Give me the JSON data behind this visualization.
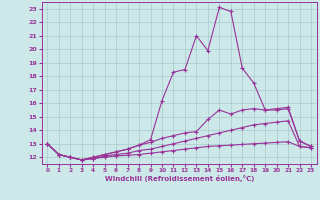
{
  "xlabel": "Windchill (Refroidissement éolien,°C)",
  "xlim": [
    -0.5,
    23.5
  ],
  "ylim": [
    11.5,
    23.5
  ],
  "yticks": [
    12,
    13,
    14,
    15,
    16,
    17,
    18,
    19,
    20,
    21,
    22,
    23
  ],
  "xticks": [
    0,
    1,
    2,
    3,
    4,
    5,
    6,
    7,
    8,
    9,
    10,
    11,
    12,
    13,
    14,
    15,
    16,
    17,
    18,
    19,
    20,
    21,
    22,
    23
  ],
  "bg_color": "#cce8e8",
  "grid_color": "#aacccc",
  "line_color": "#993399",
  "line1_x": [
    0,
    1,
    2,
    3,
    4,
    5,
    6,
    7,
    8,
    9,
    10,
    11,
    12,
    13,
    14,
    15,
    16,
    17,
    18,
    19,
    20,
    21,
    22,
    23
  ],
  "line1_y": [
    13.0,
    12.2,
    12.0,
    11.8,
    11.9,
    12.0,
    12.1,
    12.15,
    12.2,
    12.3,
    12.4,
    12.5,
    12.6,
    12.7,
    12.8,
    12.85,
    12.9,
    12.95,
    13.0,
    13.05,
    13.1,
    13.15,
    12.8,
    12.7
  ],
  "line2_x": [
    0,
    1,
    2,
    3,
    4,
    5,
    6,
    7,
    8,
    9,
    10,
    11,
    12,
    13,
    14,
    15,
    16,
    17,
    18,
    19,
    20,
    21,
    22,
    23
  ],
  "line2_y": [
    13.0,
    12.2,
    12.0,
    11.8,
    12.0,
    12.2,
    12.4,
    12.6,
    12.9,
    13.3,
    16.2,
    18.3,
    18.5,
    21.0,
    19.9,
    23.1,
    22.8,
    18.6,
    17.5,
    15.5,
    15.5,
    15.6,
    13.2,
    12.8
  ],
  "line3_x": [
    0,
    1,
    2,
    3,
    4,
    5,
    6,
    7,
    8,
    9,
    10,
    11,
    12,
    13,
    14,
    15,
    16,
    17,
    18,
    19,
    20,
    21,
    22,
    23
  ],
  "line3_y": [
    13.0,
    12.2,
    12.0,
    11.8,
    12.0,
    12.2,
    12.4,
    12.6,
    12.9,
    13.1,
    13.4,
    13.6,
    13.8,
    13.9,
    14.8,
    15.5,
    15.2,
    15.5,
    15.6,
    15.5,
    15.6,
    15.7,
    13.2,
    12.8
  ],
  "line4_x": [
    0,
    1,
    2,
    3,
    4,
    5,
    6,
    7,
    8,
    9,
    10,
    11,
    12,
    13,
    14,
    15,
    16,
    17,
    18,
    19,
    20,
    21,
    22,
    23
  ],
  "line4_y": [
    13.0,
    12.2,
    12.0,
    11.8,
    11.9,
    12.1,
    12.2,
    12.3,
    12.5,
    12.6,
    12.8,
    13.0,
    13.2,
    13.4,
    13.6,
    13.8,
    14.0,
    14.2,
    14.4,
    14.5,
    14.6,
    14.7,
    12.8,
    12.7
  ]
}
